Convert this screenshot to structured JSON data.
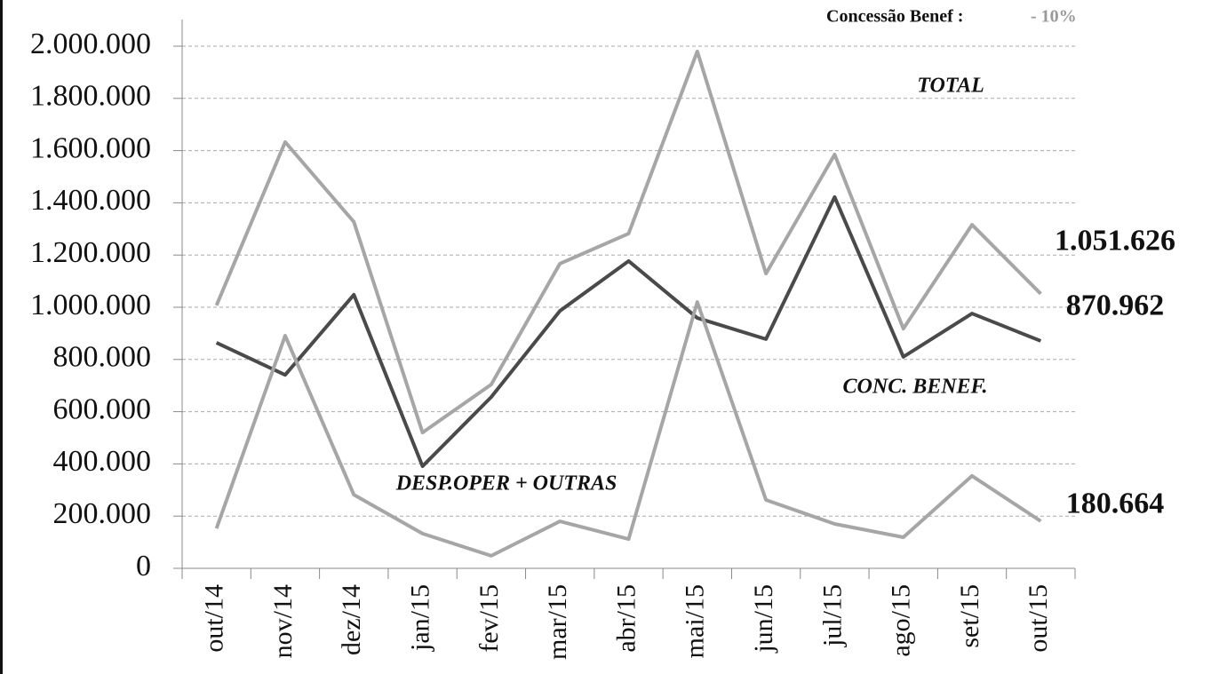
{
  "chart_data": {
    "type": "line",
    "title": "Concessão  Benef :",
    "subtitle": "- 10%",
    "categories": [
      "out/14",
      "nov/14",
      "dez/14",
      "jan/15",
      "fev/15",
      "mar/15",
      "abr/15",
      "mai/15",
      "jun/15",
      "jul/15",
      "ago/15",
      "set/15",
      "out/15"
    ],
    "series": [
      {
        "name": "TOTAL",
        "color": "#a6a6a6",
        "values": [
          1007000,
          1633000,
          1327000,
          520000,
          704000,
          1167000,
          1282000,
          1980000,
          1129000,
          1585000,
          918000,
          1316000,
          1051626
        ],
        "value_labels": [
          null,
          null,
          null,
          null,
          null,
          null,
          null,
          null,
          null,
          null,
          null,
          null,
          "1.051.626"
        ]
      },
      {
        "name": "CONC. BENEF.",
        "color": "#4a4a4a",
        "values": [
          864000,
          741000,
          1048000,
          391000,
          656000,
          986000,
          1177000,
          959000,
          878000,
          1422000,
          810000,
          976000,
          870962
        ],
        "value_labels": [
          null,
          null,
          null,
          null,
          null,
          null,
          null,
          null,
          null,
          null,
          null,
          null,
          "870.962"
        ]
      },
      {
        "name": "DESP.OPER + OUTRAS",
        "color": "#a6a6a6",
        "values": [
          153000,
          891000,
          282000,
          133000,
          48000,
          180000,
          112000,
          1020000,
          262000,
          170000,
          119000,
          354000,
          180664
        ],
        "value_labels": [
          null,
          null,
          null,
          null,
          null,
          null,
          null,
          null,
          null,
          null,
          null,
          null,
          "180.664"
        ]
      }
    ],
    "ylim": [
      0,
      2000000
    ],
    "yticks": [
      0,
      {
        "value": 200000,
        "label": "200.000"
      },
      {
        "value": 400000,
        "label": "400.000"
      },
      {
        "value": 600000,
        "label": "600.000"
      },
      {
        "value": 800000,
        "label": "800.000"
      },
      {
        "value": 1000000,
        "label": "1.000.000"
      },
      {
        "value": 1200000,
        "label": "1.200.000"
      },
      {
        "value": 1400000,
        "label": "1.400.000"
      },
      {
        "value": 1600000,
        "label": "1.600.000"
      },
      {
        "value": 1800000,
        "label": "1.800.000"
      },
      {
        "value": 2000000,
        "label": "2.000.000"
      }
    ],
    "grid": true
  }
}
